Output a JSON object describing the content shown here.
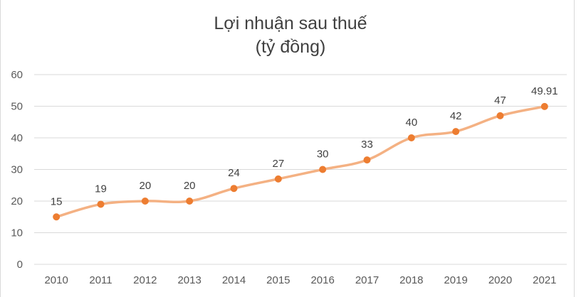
{
  "chart_data": {
    "type": "line",
    "title": "Lợi nhuận sau thuế",
    "subtitle": "(tỷ đồng)",
    "xlabel": "",
    "ylabel": "",
    "categories": [
      "2010",
      "2011",
      "2012",
      "2013",
      "2014",
      "2015",
      "2016",
      "2017",
      "2018",
      "2019",
      "2020",
      "2021"
    ],
    "series": [
      {
        "values": [
          15,
          19,
          20,
          20,
          24,
          27,
          30,
          33,
          40,
          42,
          47,
          49.91
        ],
        "labels": [
          "15",
          "19",
          "20",
          "20",
          "24",
          "27",
          "30",
          "33",
          "40",
          "42",
          "47",
          "49.91"
        ],
        "color": "#f4b183",
        "marker_color": "#ed7d31"
      }
    ],
    "ylim": [
      0,
      60
    ],
    "yticks": [
      0,
      10,
      20,
      30,
      40,
      50,
      60
    ],
    "smooth": true,
    "grid": true,
    "gridline_color": "#d9d9d9",
    "legend": "none"
  }
}
